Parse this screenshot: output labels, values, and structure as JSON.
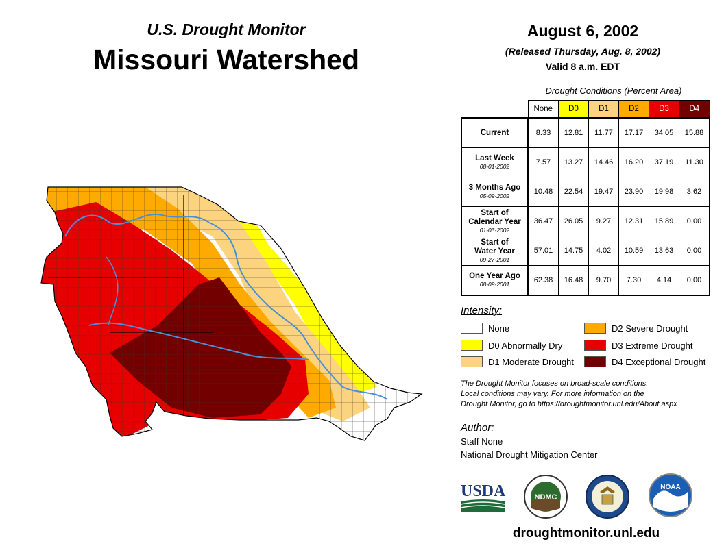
{
  "header": {
    "subtitle": "U.S. Drought Monitor",
    "title": "Missouri Watershed",
    "date": "August 6, 2002",
    "released": "(Released Thursday, Aug. 8, 2002)",
    "valid": "Valid 8 a.m. EDT"
  },
  "table": {
    "title": "Drought Conditions (Percent Area)",
    "columns": [
      {
        "label": "None",
        "color": "#ffffff",
        "text_color": "#000000"
      },
      {
        "label": "D0",
        "color": "#ffff00",
        "text_color": "#000000"
      },
      {
        "label": "D1",
        "color": "#fcd37f",
        "text_color": "#000000"
      },
      {
        "label": "D2",
        "color": "#ffaa00",
        "text_color": "#000000"
      },
      {
        "label": "D3",
        "color": "#e60000",
        "text_color": "#ffffff"
      },
      {
        "label": "D4",
        "color": "#730000",
        "text_color": "#ffffff"
      }
    ],
    "rows": [
      {
        "label": "Current",
        "label2": "",
        "date": "",
        "values": [
          "8.33",
          "12.81",
          "11.77",
          "17.17",
          "34.05",
          "15.88"
        ]
      },
      {
        "label": "Last Week",
        "label2": "",
        "date": "08-01-2002",
        "values": [
          "7.57",
          "13.27",
          "14.46",
          "16.20",
          "37.19",
          "11.30"
        ]
      },
      {
        "label": "3 Months Ago",
        "label2": "",
        "date": "05-09-2002",
        "values": [
          "10.48",
          "22.54",
          "19.47",
          "23.90",
          "19.98",
          "3.62"
        ]
      },
      {
        "label": "Start of",
        "label2": "Calendar Year",
        "date": "01-03-2002",
        "values": [
          "36.47",
          "26.05",
          "9.27",
          "12.31",
          "15.89",
          "0.00"
        ]
      },
      {
        "label": "Start of",
        "label2": "Water Year",
        "date": "09-27-2001",
        "values": [
          "57.01",
          "14.75",
          "4.02",
          "10.59",
          "13.63",
          "0.00"
        ]
      },
      {
        "label": "One Year Ago",
        "label2": "",
        "date": "08-09-2001",
        "values": [
          "62.38",
          "16.48",
          "9.70",
          "7.30",
          "4.14",
          "0.00"
        ]
      }
    ]
  },
  "legend": {
    "title": "Intensity:",
    "items": [
      {
        "label": "None",
        "color": "#ffffff"
      },
      {
        "label": "D0 Abnormally Dry",
        "color": "#ffff00"
      },
      {
        "label": "D1 Moderate Drought",
        "color": "#fcd37f"
      },
      {
        "label": "D2 Severe Drought",
        "color": "#ffaa00"
      },
      {
        "label": "D3 Extreme Drought",
        "color": "#e60000"
      },
      {
        "label": "D4 Exceptional Drought",
        "color": "#730000"
      }
    ]
  },
  "note": {
    "line1": "The Drought Monitor focuses on broad-scale conditions.",
    "line2": "Local conditions may vary. For more information on the",
    "line3": "Drought Monitor, go to https://droughtmonitor.unl.edu/About.aspx"
  },
  "author": {
    "title": "Author:",
    "name": "Staff None",
    "org": "National Drought Mitigation Center"
  },
  "logos": {
    "usda": "USDA",
    "ndmc": "NDMC",
    "noaa": "NOAA"
  },
  "map": {
    "colors": {
      "river": "#4a8fd8",
      "county_line": "#333333",
      "state_line": "#000000"
    }
  },
  "url": "droughtmonitor.unl.edu"
}
